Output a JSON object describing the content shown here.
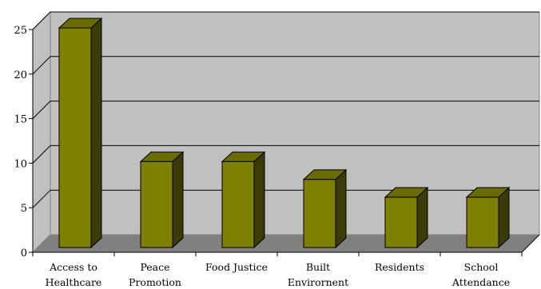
{
  "chart_data": {
    "type": "bar",
    "style": "3d-column",
    "title": "",
    "xlabel": "",
    "ylabel": "",
    "categories": [
      [
        "Access to",
        "Healthcare"
      ],
      [
        "Peace",
        "Promotion"
      ],
      [
        "Food Justice"
      ],
      [
        "Built",
        "Envirornent"
      ],
      [
        "Residents"
      ],
      [
        "School",
        "Attendance"
      ]
    ],
    "values": [
      25,
      10,
      10,
      8,
      6,
      6
    ],
    "ylim": [
      0,
      25
    ],
    "yticks": [
      "0",
      "5",
      "10",
      "15",
      "20",
      "25"
    ],
    "grid": true,
    "legend": "none",
    "colors": {
      "bar_front": "#808000",
      "bar_top": "#6b6b06",
      "bar_side": "#3b3b08",
      "wall": "#c0c0c0",
      "floor": "#808080",
      "gridline": "#000000"
    }
  }
}
